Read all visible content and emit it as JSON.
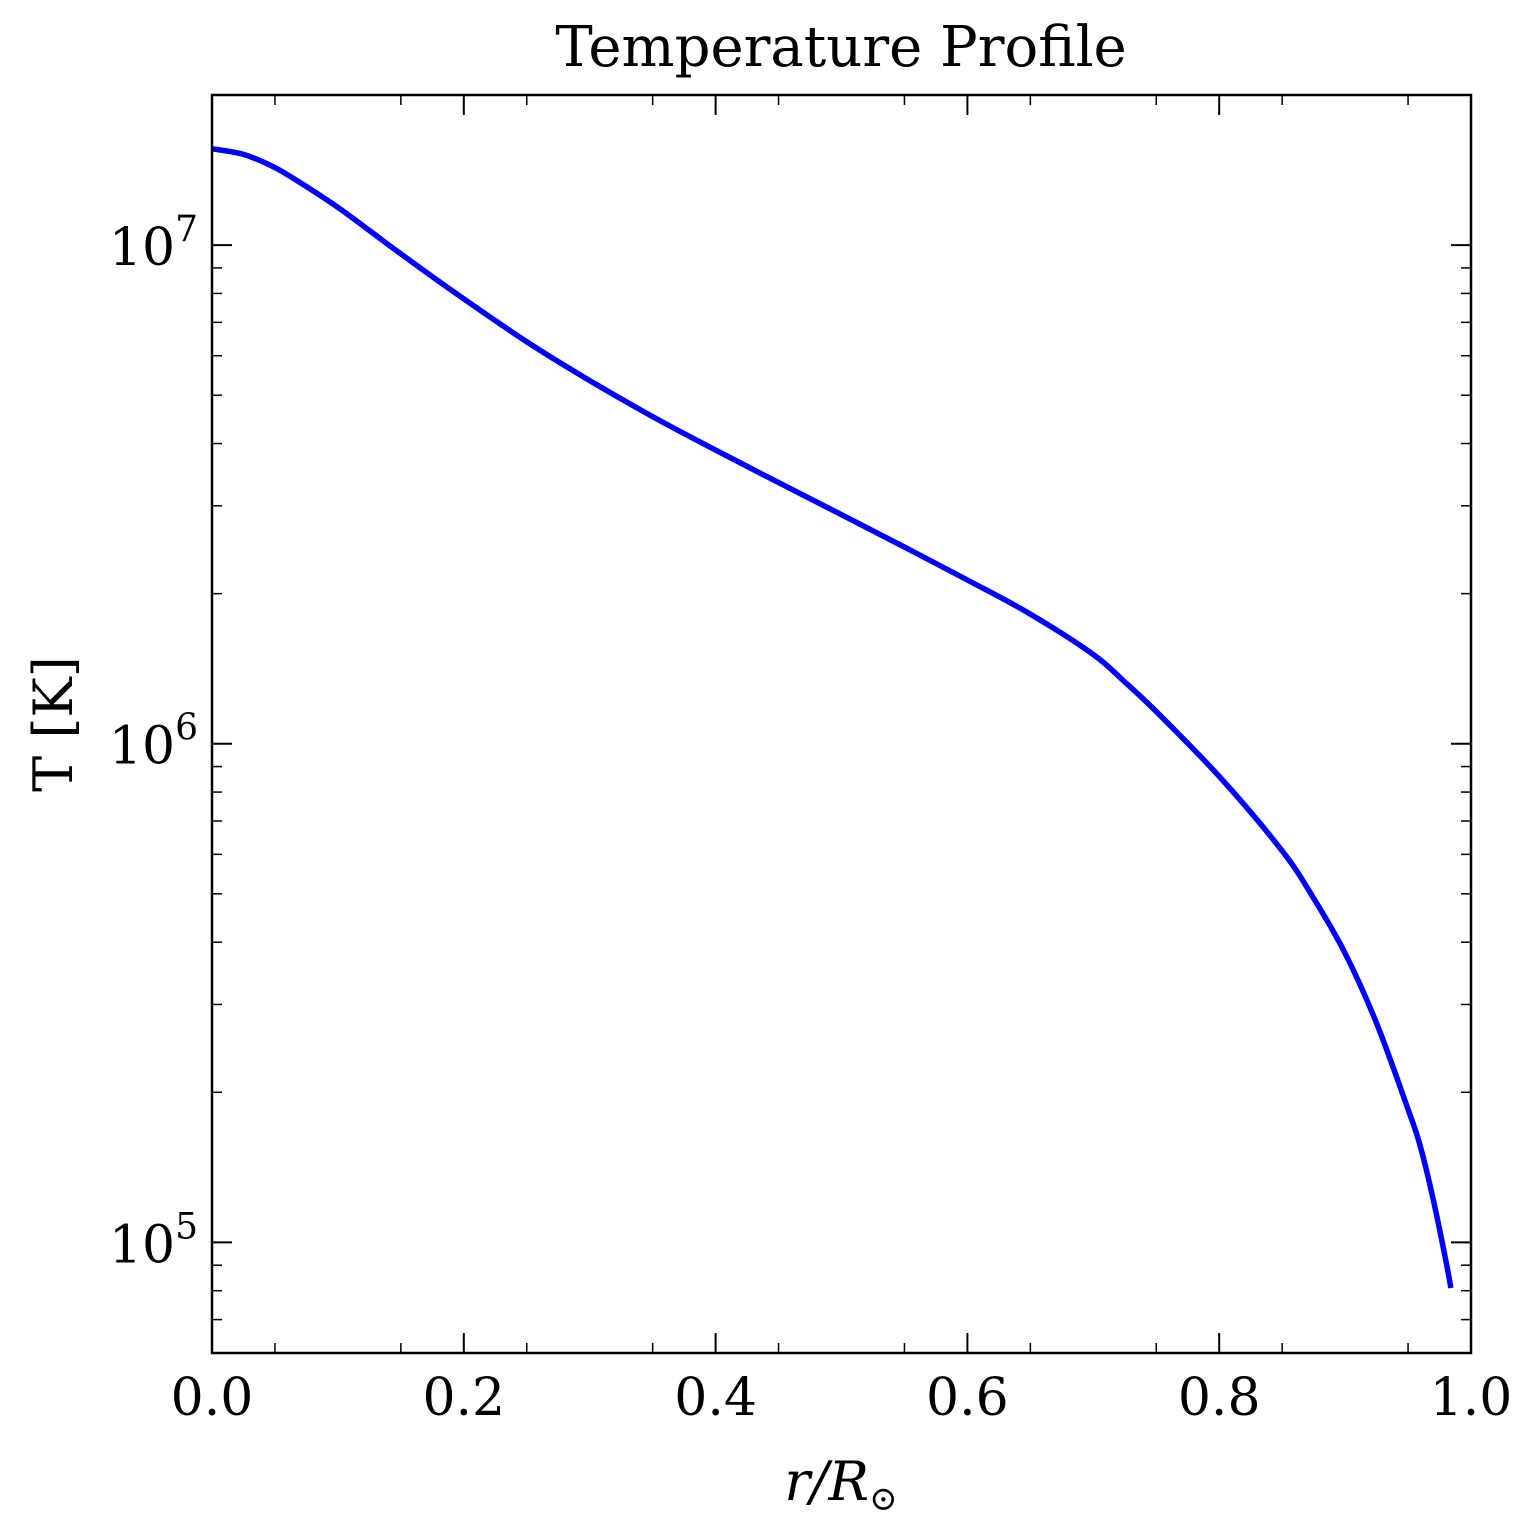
{
  "chart_data": {
    "type": "line",
    "title": "Temperature Profile",
    "xlabel": {
      "main": "r/R",
      "sub": "⊙"
    },
    "ylabel": "T [K]",
    "xlim": [
      0.0,
      1.0
    ],
    "ylim": [
      60000,
      20000000
    ],
    "yscale": "log",
    "grid": false,
    "line_color": "#0000ff",
    "x_ticks": [
      {
        "value": 0.0,
        "label": "0.0"
      },
      {
        "value": 0.2,
        "label": "0.2"
      },
      {
        "value": 0.4,
        "label": "0.4"
      },
      {
        "value": 0.6,
        "label": "0.6"
      },
      {
        "value": 0.8,
        "label": "0.8"
      },
      {
        "value": 1.0,
        "label": "1.0"
      }
    ],
    "y_ticks": [
      {
        "value": 100000,
        "base": "10",
        "exp": "5"
      },
      {
        "value": 1000000,
        "base": "10",
        "exp": "6"
      },
      {
        "value": 10000000,
        "base": "10",
        "exp": "7"
      }
    ],
    "series": [
      {
        "x": [
          0.0,
          0.025,
          0.05,
          0.075,
          0.1,
          0.125,
          0.15,
          0.2,
          0.25,
          0.3,
          0.35,
          0.4,
          0.45,
          0.5,
          0.55,
          0.6,
          0.65,
          0.7,
          0.725,
          0.75,
          0.8,
          0.85,
          0.875,
          0.9,
          0.925,
          0.95,
          0.96,
          0.97,
          0.98,
          0.984
        ],
        "y": [
          15600000,
          15200000,
          14300000,
          13100000,
          11900000,
          10700000,
          9600000,
          7800000,
          6400000,
          5350000,
          4530000,
          3880000,
          3340000,
          2880000,
          2480000,
          2130000,
          1820000,
          1510000,
          1330000,
          1160000,
          860000,
          610000,
          490000,
          380000,
          275000,
          185000,
          155000,
          122000,
          92000,
          81000
        ]
      }
    ]
  }
}
